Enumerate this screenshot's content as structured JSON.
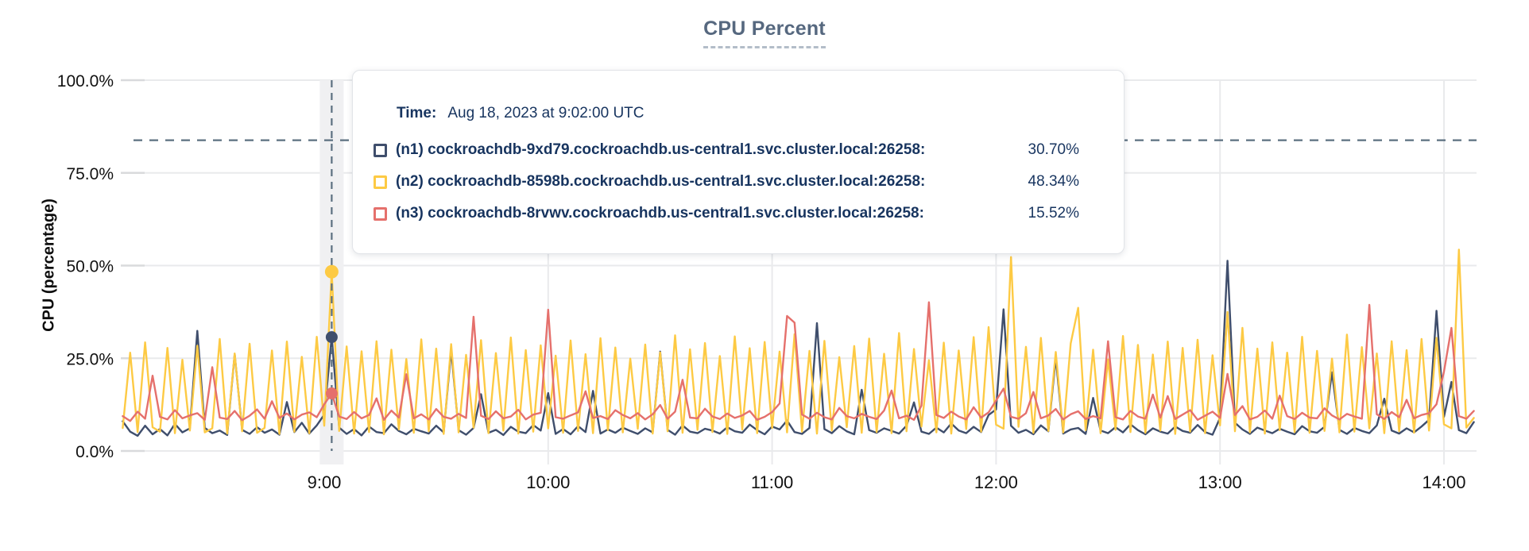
{
  "chart": {
    "title": "CPU Percent",
    "y_axis_label": "CPU (percentage)"
  },
  "colors": {
    "grid": "#e9eaec",
    "grid_tick": "#d9dadc",
    "hover_band": "#f0f0f2",
    "crosshair": "#5c7080",
    "title_text": "#56687f",
    "tooltip_text": "#17345f",
    "n1": "#3f4e6c",
    "n2": "#fdca44",
    "n3": "#e5706c"
  },
  "tooltip": {
    "time_label": "Time:",
    "time_value": "Aug 18, 2023 at 9:02:00 UTC",
    "series": [
      {
        "id": "n1",
        "label": "(n1) cockroachdb-9xd79.cockroachdb.us-central1.svc.cluster.local:26258:",
        "value": "30.70%"
      },
      {
        "id": "n2",
        "label": "(n2) cockroachdb-8598b.cockroachdb.us-central1.svc.cluster.local:26258:",
        "value": "48.34%"
      },
      {
        "id": "n3",
        "label": "(n3) cockroachdb-8rvwv.cockroachdb.us-central1.svc.cluster.local:26258:",
        "value": "15.52%"
      }
    ]
  },
  "chart_data": {
    "type": "line",
    "title": "CPU Percent",
    "ylabel": "CPU (percentage)",
    "ylim": [
      0,
      100
    ],
    "grid": true,
    "y_tick_values": [
      100,
      75,
      50,
      25,
      0
    ],
    "y_tick_labels": [
      "100.0%",
      "75.0%",
      "50.0%",
      "25.0%",
      "0.0%"
    ],
    "x_tick_minutes": [
      540,
      600,
      660,
      720,
      780,
      840
    ],
    "x_tick_labels": [
      "9:00",
      "10:00",
      "11:00",
      "12:00",
      "13:00",
      "14:00"
    ],
    "x_start_minute": 486,
    "x_step_minutes": 2,
    "x_range_labels": [
      "8:06",
      "14:08"
    ],
    "crosshair": {
      "x_minute": 542,
      "x_label": "9:02",
      "time": "Aug 18, 2023 at 9:02:00 UTC",
      "hover_value_percent": 83.8,
      "points": [
        {
          "series": "n1",
          "value": 30.7
        },
        {
          "series": "n2",
          "value": 48.34
        },
        {
          "series": "n3",
          "value": 15.52
        }
      ]
    },
    "series": [
      {
        "id": "n1",
        "name": "(n1) cockroachdb-9xd79.cockroachdb.us-central1.svc.cluster.local:26258",
        "color": "#3f4e6c",
        "values": [
          8.0,
          5.2,
          4.1,
          6.8,
          4.5,
          5.9,
          4.2,
          7.3,
          5.0,
          6.1,
          32.4,
          6.2,
          4.8,
          5.5,
          4.3,
          26.1,
          5.7,
          4.6,
          6.4,
          4.9,
          5.8,
          4.4,
          13.2,
          5.1,
          7.6,
          4.7,
          6.9,
          9.8,
          30.7,
          6.3,
          4.6,
          5.9,
          4.2,
          6.6,
          5.1,
          4.8,
          7.2,
          5.4,
          4.5,
          6.0,
          5.3,
          4.7,
          6.8,
          5.0,
          27.2,
          5.6,
          4.4,
          6.2,
          15.3,
          4.9,
          5.7,
          4.3,
          6.5,
          5.2,
          4.8,
          7.0,
          5.5,
          15.6,
          4.6,
          5.9,
          4.5,
          6.7,
          5.1,
          16.2,
          4.7,
          5.8,
          4.9,
          6.3,
          5.4,
          4.6,
          6.1,
          5.0,
          26.8,
          5.7,
          4.4,
          6.9,
          5.2,
          4.8,
          6.0,
          5.5,
          4.7,
          6.4,
          5.3,
          4.9,
          7.1,
          5.6,
          4.5,
          6.6,
          5.8,
          8.2,
          5.1,
          4.6,
          6.2,
          34.5,
          5.9,
          4.8,
          6.7,
          5.3,
          4.5,
          16.5,
          5.6,
          4.9,
          6.1,
          5.4,
          4.7,
          6.8,
          13.1,
          5.2,
          4.6,
          6.3,
          5.0,
          7.4,
          5.5,
          4.8,
          6.5,
          5.1,
          9.7,
          11.2,
          38.2,
          6.8,
          4.9,
          5.7,
          4.5,
          6.9,
          5.3,
          25.1,
          4.7,
          5.8,
          6.2,
          4.6,
          14.3,
          5.5,
          4.8,
          6.4,
          5.0,
          7.2,
          5.6,
          4.5,
          6.1,
          5.2,
          4.7,
          6.6,
          5.4,
          4.9,
          7.0,
          5.1,
          4.4,
          8.9,
          51.3,
          7.6,
          5.8,
          4.6,
          6.3,
          5.5,
          4.8,
          6.0,
          5.2,
          4.5,
          6.7,
          5.3,
          4.9,
          6.5,
          21.2,
          5.7,
          4.6,
          6.2,
          5.4,
          4.8,
          6.9,
          14.1,
          5.5,
          4.7,
          6.1,
          5.0,
          6.6,
          8.4,
          37.8,
          9.2,
          18.6,
          5.6,
          4.8,
          7.8
        ]
      },
      {
        "id": "n2",
        "name": "(n2) cockroachdb-8598b.cockroachdb.us-central1.svc.cluster.local:26258",
        "color": "#fdca44",
        "values": [
          6.2,
          26.5,
          5.1,
          29.3,
          6.4,
          5.2,
          27.8,
          4.8,
          24.6,
          5.5,
          28.4,
          5.0,
          6.1,
          30.2,
          4.7,
          26.3,
          5.3,
          28.9,
          4.9,
          6.2,
          27.1,
          4.6,
          29.5,
          5.2,
          25.4,
          4.8,
          30.8,
          6.8,
          48.34,
          5.4,
          28.2,
          4.7,
          26.9,
          5.1,
          29.6,
          4.5,
          27.3,
          5.8,
          24.8,
          4.9,
          30.1,
          5.3,
          27.6,
          4.6,
          28.8,
          5.0,
          25.9,
          6.3,
          29.9,
          4.8,
          26.4,
          5.5,
          30.6,
          4.7,
          27.2,
          5.2,
          28.5,
          6.1,
          25.7,
          4.9,
          29.8,
          5.4,
          26.1,
          4.8,
          30.4,
          5.6,
          27.9,
          5.0,
          24.9,
          6.0,
          28.7,
          4.7,
          26.6,
          5.3,
          31.2,
          4.9,
          27.4,
          5.7,
          29.1,
          5.1,
          25.6,
          4.6,
          30.9,
          5.8,
          27.7,
          4.8,
          29.4,
          6.2,
          26.8,
          5.0,
          31.5,
          5.2,
          27.0,
          4.7,
          29.7,
          5.5,
          25.3,
          6.4,
          28.3,
          4.9,
          30.3,
          5.1,
          26.2,
          4.8,
          31.8,
          5.3,
          27.5,
          6.6,
          24.5,
          5.0,
          29.2,
          4.7,
          27.1,
          5.9,
          30.7,
          5.2,
          33.4,
          7.1,
          6.0,
          52.3,
          6.5,
          28.1,
          4.9,
          30.5,
          5.4,
          26.7,
          5.0,
          29.0,
          38.6,
          5.6,
          27.3,
          4.8,
          24.7,
          5.7,
          31.0,
          5.1,
          28.6,
          4.9,
          26.0,
          5.5,
          29.5,
          4.6,
          27.8,
          5.2,
          30.0,
          4.8,
          25.8,
          6.9,
          37.5,
          5.3,
          33.2,
          5.0,
          27.6,
          4.7,
          29.3,
          5.6,
          26.5,
          5.1,
          30.8,
          4.9,
          27.0,
          5.4,
          24.9,
          5.0,
          31.4,
          5.2,
          28.0,
          6.1,
          26.3,
          4.8,
          29.6,
          5.3,
          27.2,
          4.9,
          30.2,
          5.5,
          30.5,
          7.2,
          6.1,
          54.3,
          6.3,
          8.9
        ]
      },
      {
        "id": "n3",
        "name": "(n3) cockroachdb-8rvwv.cockroachdb.us-central1.svc.cluster.local:26258",
        "color": "#e5706c",
        "values": [
          9.4,
          8.1,
          10.6,
          8.7,
          20.3,
          9.2,
          8.5,
          11.0,
          8.8,
          9.6,
          10.2,
          8.4,
          22.6,
          9.0,
          8.6,
          10.8,
          8.3,
          9.5,
          11.2,
          8.7,
          13.4,
          8.9,
          10.1,
          8.5,
          9.8,
          10.4,
          9.1,
          12.6,
          15.52,
          9.3,
          8.6,
          10.5,
          8.8,
          9.7,
          14.2,
          8.4,
          10.9,
          9.0,
          20.7,
          8.8,
          9.9,
          8.5,
          11.3,
          9.2,
          8.7,
          10.0,
          8.9,
          36.2,
          9.5,
          8.6,
          10.7,
          8.8,
          9.3,
          11.1,
          8.5,
          9.8,
          10.3,
          38.1,
          9.1,
          8.7,
          9.6,
          10.4,
          16.1,
          8.9,
          9.4,
          8.6,
          11.0,
          9.7,
          8.8,
          10.2,
          8.5,
          9.9,
          12.4,
          8.7,
          10.6,
          19.2,
          9.0,
          8.8,
          11.4,
          9.3,
          8.6,
          10.1,
          8.9,
          9.6,
          10.8,
          8.4,
          9.2,
          10.5,
          12.8,
          36.4,
          34.6,
          9.8,
          8.7,
          10.3,
          9.1,
          8.5,
          11.6,
          9.4,
          8.8,
          10.0,
          9.2,
          8.6,
          10.9,
          16.3,
          8.8,
          9.5,
          8.4,
          12.2,
          40.1,
          9.7,
          8.9,
          10.6,
          9.3,
          8.5,
          11.8,
          9.0,
          10.4,
          13.6,
          16.8,
          9.2,
          8.7,
          10.2,
          15.9,
          8.8,
          9.6,
          11.3,
          8.5,
          9.9,
          10.7,
          8.6,
          9.4,
          8.8,
          29.6,
          9.1,
          8.5,
          10.8,
          9.3,
          8.7,
          15.2,
          9.0,
          14.8,
          8.6,
          9.8,
          11.0,
          8.4,
          9.5,
          10.6,
          8.9,
          20.8,
          9.7,
          12.1,
          8.5,
          9.2,
          10.9,
          8.7,
          14.9,
          9.4,
          8.6,
          10.3,
          9.0,
          8.8,
          11.5,
          9.6,
          8.5,
          10.0,
          9.3,
          8.7,
          39.4,
          9.9,
          8.6,
          10.5,
          9.1,
          13.8,
          8.8,
          9.7,
          10.2,
          12.6,
          21.4,
          33.2,
          9.4,
          8.7,
          10.8
        ]
      }
    ]
  }
}
